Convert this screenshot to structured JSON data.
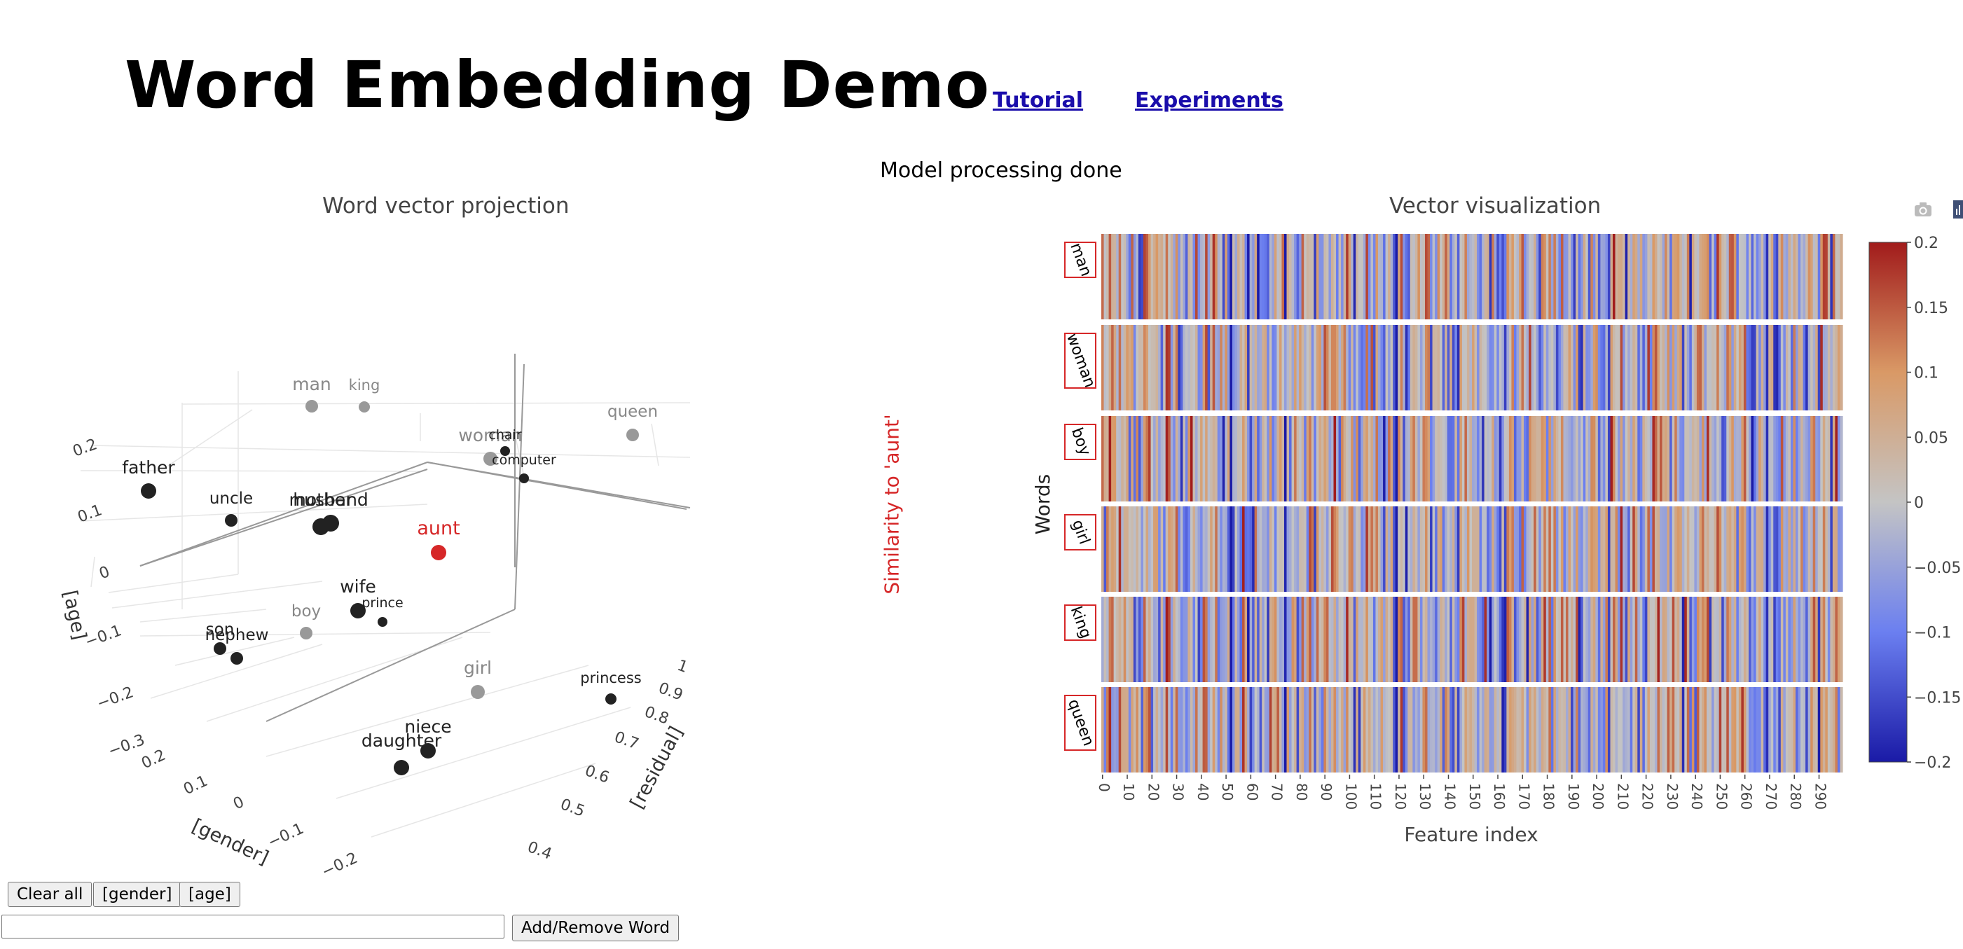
{
  "header": {
    "title": "Word Embedding Demo",
    "links": [
      {
        "label": "Tutorial"
      },
      {
        "label": "Experiments"
      }
    ]
  },
  "status": "Model processing done",
  "projection": {
    "title": "Word vector projection",
    "similarity_label": "Similarity to 'aunt'",
    "axes": {
      "age_label": "[age]",
      "gender_label": "[gender]",
      "residual_label": "[residual]",
      "age_ticks": [
        "0.2",
        "0.1",
        "0",
        "−0.1",
        "−0.2",
        "−0.3"
      ],
      "gender_ticks": [
        "0.2",
        "0.1",
        "0",
        "−0.1",
        "−0.2"
      ],
      "residual_ticks": [
        "1",
        "0.9",
        "0.8",
        "0.7",
        "0.6",
        "0.5",
        "0.4"
      ]
    },
    "points": [
      {
        "word": "man",
        "color": "#999999"
      },
      {
        "word": "king",
        "color": "#999999"
      },
      {
        "word": "queen",
        "color": "#999999"
      },
      {
        "word": "woman",
        "color": "#999999"
      },
      {
        "word": "chair",
        "color": "#222222"
      },
      {
        "word": "computer",
        "color": "#222222"
      },
      {
        "word": "father",
        "color": "#222222"
      },
      {
        "word": "uncle",
        "color": "#222222"
      },
      {
        "word": "mother",
        "color": "#222222"
      },
      {
        "word": "husband",
        "color": "#222222"
      },
      {
        "word": "aunt",
        "color": "#d62728"
      },
      {
        "word": "wife",
        "color": "#222222"
      },
      {
        "word": "prince",
        "color": "#222222"
      },
      {
        "word": "boy",
        "color": "#999999"
      },
      {
        "word": "son",
        "color": "#222222"
      },
      {
        "word": "nephew",
        "color": "#222222"
      },
      {
        "word": "girl",
        "color": "#999999"
      },
      {
        "word": "princess",
        "color": "#222222"
      },
      {
        "word": "niece",
        "color": "#222222"
      },
      {
        "word": "daughter",
        "color": "#222222"
      }
    ]
  },
  "heatmap": {
    "title": "Vector visualization",
    "ylabel": "Words",
    "xlabel": "Feature index",
    "words": [
      "man",
      "woman",
      "boy",
      "girl",
      "king",
      "queen"
    ],
    "n_features": 300,
    "x_ticks": [
      "0",
      "10",
      "20",
      "30",
      "40",
      "50",
      "60",
      "70",
      "80",
      "90",
      "100",
      "110",
      "120",
      "130",
      "140",
      "150",
      "160",
      "170",
      "180",
      "190",
      "200",
      "210",
      "220",
      "230",
      "240",
      "250",
      "260",
      "270",
      "280",
      "290"
    ],
    "colorbar_ticks": [
      "0.2",
      "0.15",
      "0.1",
      "0.05",
      "0",
      "−0.05",
      "−0.1",
      "−0.15",
      "−0.2"
    ],
    "colorscale": [
      "#1a1aa6",
      "#6b7ff0",
      "#c4c4c4",
      "#d99966",
      "#a11b1b"
    ]
  },
  "controls": {
    "clear_label": "Clear all",
    "gender_label": "[gender]",
    "age_label": "[age]",
    "input_placeholder": "",
    "input_value": "",
    "add_remove_label": "Add/Remove Word"
  },
  "modebar": {
    "icons": [
      "camera-icon",
      "plotly-logo-icon"
    ]
  }
}
